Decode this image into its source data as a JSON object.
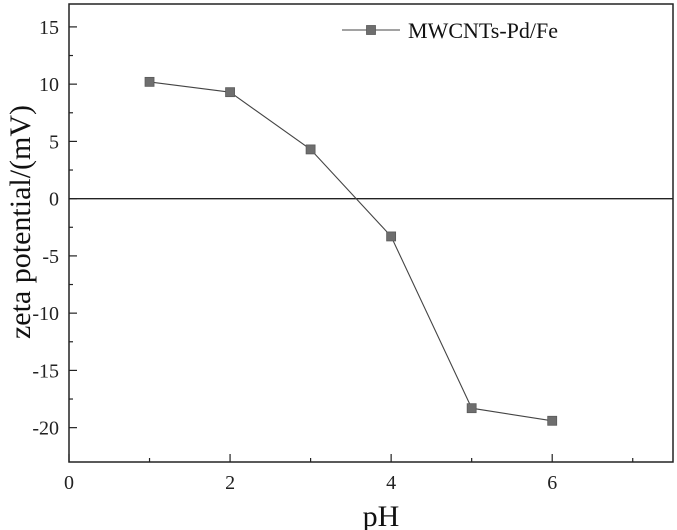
{
  "chart_data": {
    "type": "line",
    "title": "",
    "xlabel": "pH",
    "ylabel": "zeta potential/(mV)",
    "xlim": [
      0,
      7.5
    ],
    "ylim": [
      -23,
      17
    ],
    "x_ticks": [
      0,
      2,
      4,
      6
    ],
    "y_ticks": [
      15,
      10,
      5,
      0,
      -5,
      -10,
      -15,
      -20
    ],
    "grid": false,
    "zero_line": true,
    "legend_position": "top-right",
    "series": [
      {
        "name": "MWCNTs-Pd/Fe",
        "marker": "square",
        "color": "#6e6e6e",
        "x": [
          1,
          2,
          3,
          4,
          5,
          6
        ],
        "y": [
          10.2,
          9.3,
          4.3,
          -3.3,
          -18.3,
          -19.4
        ]
      }
    ]
  }
}
